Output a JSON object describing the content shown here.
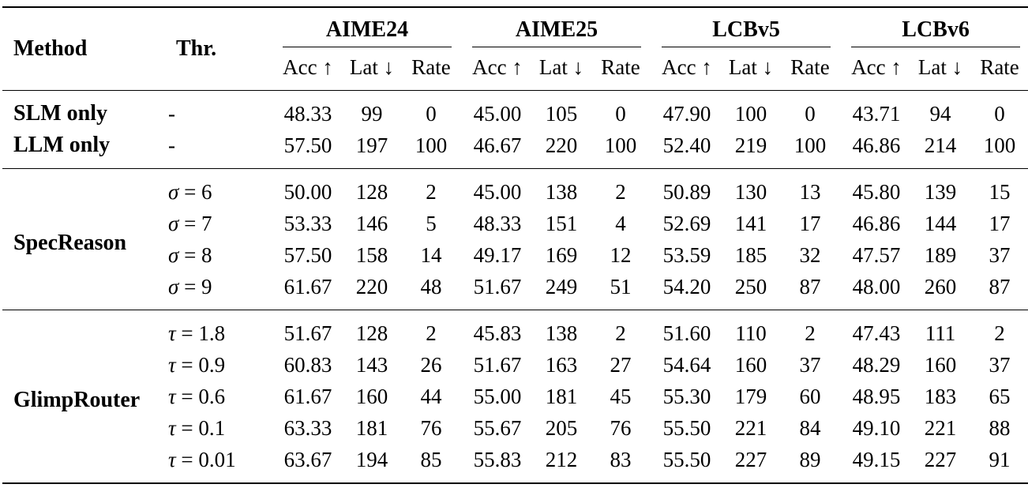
{
  "page": {
    "background": "#ffffff",
    "text_color": "#000000",
    "rule_color": "#000000"
  },
  "table": {
    "header": {
      "method": "Method",
      "threshold": "Thr."
    },
    "groups": [
      {
        "label": "AIME24"
      },
      {
        "label": "AIME25"
      },
      {
        "label": "LCBv5"
      },
      {
        "label": "LCBv6"
      }
    ],
    "subheaders": [
      "Acc ↑",
      "Lat ↓",
      "Rate"
    ],
    "sections": [
      {
        "rows": [
          {
            "method": "SLM only",
            "thr": "-",
            "values": [
              "48.33",
              "99",
              "0",
              "45.00",
              "105",
              "0",
              "47.90",
              "100",
              "0",
              "43.71",
              "94",
              "0"
            ]
          },
          {
            "method": "LLM only",
            "thr": "-",
            "values": [
              "57.50",
              "197",
              "100",
              "46.67",
              "220",
              "100",
              "52.40",
              "219",
              "100",
              "46.86",
              "214",
              "100"
            ]
          }
        ]
      },
      {
        "method": "SpecReason",
        "rows": [
          {
            "thr_sym": "σ",
            "thr_eq": "= 6",
            "values": [
              "50.00",
              "128",
              "2",
              "45.00",
              "138",
              "2",
              "50.89",
              "130",
              "13",
              "45.80",
              "139",
              "15"
            ]
          },
          {
            "thr_sym": "σ",
            "thr_eq": "= 7",
            "values": [
              "53.33",
              "146",
              "5",
              "48.33",
              "151",
              "4",
              "52.69",
              "141",
              "17",
              "46.86",
              "144",
              "17"
            ]
          },
          {
            "thr_sym": "σ",
            "thr_eq": "= 8",
            "values": [
              "57.50",
              "158",
              "14",
              "49.17",
              "169",
              "12",
              "53.59",
              "185",
              "32",
              "47.57",
              "189",
              "37"
            ]
          },
          {
            "thr_sym": "σ",
            "thr_eq": "= 9",
            "values": [
              "61.67",
              "220",
              "48",
              "51.67",
              "249",
              "51",
              "54.20",
              "250",
              "87",
              "48.00",
              "260",
              "87"
            ]
          }
        ]
      },
      {
        "method": "GlimpRouter",
        "rows": [
          {
            "thr_sym": "τ",
            "thr_eq": "= 1.8",
            "values": [
              "51.67",
              "128",
              "2",
              "45.83",
              "138",
              "2",
              "51.60",
              "110",
              "2",
              "47.43",
              "111",
              "2"
            ]
          },
          {
            "thr_sym": "τ",
            "thr_eq": "= 0.9",
            "values": [
              "60.83",
              "143",
              "26",
              "51.67",
              "163",
              "27",
              "54.64",
              "160",
              "37",
              "48.29",
              "160",
              "37"
            ]
          },
          {
            "thr_sym": "τ",
            "thr_eq": "= 0.6",
            "values": [
              "61.67",
              "160",
              "44",
              "55.00",
              "181",
              "45",
              "55.30",
              "179",
              "60",
              "48.95",
              "183",
              "65"
            ]
          },
          {
            "thr_sym": "τ",
            "thr_eq": "= 0.1",
            "values": [
              "63.33",
              "181",
              "76",
              "55.67",
              "205",
              "76",
              "55.50",
              "221",
              "84",
              "49.10",
              "221",
              "88"
            ]
          },
          {
            "thr_sym": "τ",
            "thr_eq": "= 0.01",
            "values": [
              "63.67",
              "194",
              "85",
              "55.83",
              "212",
              "83",
              "55.50",
              "227",
              "89",
              "49.15",
              "227",
              "91"
            ]
          }
        ]
      }
    ]
  }
}
